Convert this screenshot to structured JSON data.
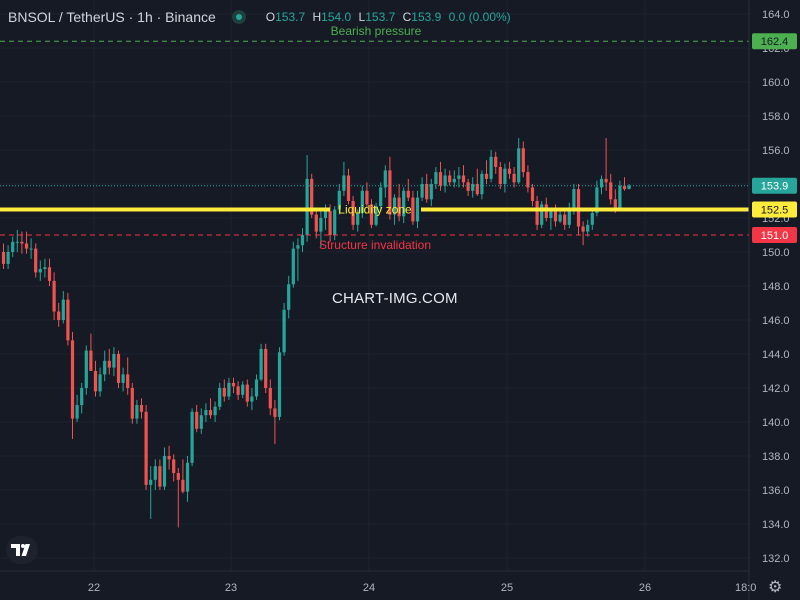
{
  "header": {
    "title": "BNSOL / TetherUS · 1h · Binance",
    "ohlc": [
      {
        "key": "O",
        "value": "153.7"
      },
      {
        "key": "H",
        "value": "154.0"
      },
      {
        "key": "L",
        "value": "153.7"
      },
      {
        "key": "C",
        "value": "153.9"
      },
      {
        "key": "",
        "value": "0.0 (0.00%)"
      }
    ]
  },
  "watermark": "CHART-IMG.COM",
  "colors": {
    "background": "#161a25",
    "up": "#26a69a",
    "down": "#ef5350",
    "bearish_line": "#4caf50",
    "liquidity_line": "#ffeb3b",
    "invalidation_line": "#f23645"
  },
  "icons": {
    "logo": "tradingview-logo-icon",
    "settings": "gear-icon"
  },
  "chart_data": {
    "type": "candlestick",
    "title": "BNSOL / TetherUS · 1h · Binance",
    "y_range": [
      131.5,
      164.5
    ],
    "y_ticks": [
      "132.0",
      "134.0",
      "136.0",
      "138.0",
      "140.0",
      "142.0",
      "144.0",
      "146.0",
      "148.0",
      "150.0",
      "152.0",
      "154.0",
      "156.0",
      "158.0",
      "160.0",
      "162.0",
      "164.0"
    ],
    "x_ticks": [
      "22",
      "23",
      "24",
      "25",
      "26",
      "18:0"
    ],
    "grid": true,
    "current_price": {
      "value": 153.9,
      "label": "153.9"
    },
    "levels": [
      {
        "name": "Bearish pressure",
        "value": 162.4,
        "label": "162.4",
        "style": "dashed",
        "color": "#4caf50"
      },
      {
        "name": "Liquidity zone",
        "value": 152.5,
        "label": "152.5",
        "style": "solid",
        "color": "#ffeb3b"
      },
      {
        "name": "Structure invalidation",
        "value": 151.0,
        "label": "151.0",
        "style": "dashed",
        "color": "#f23645"
      }
    ],
    "candles": [
      [
        150.0,
        150.5,
        149.0,
        149.3
      ],
      [
        149.3,
        150.4,
        149.0,
        150.0
      ],
      [
        150.0,
        150.9,
        149.7,
        150.6
      ],
      [
        150.6,
        151.3,
        150.0,
        150.6
      ],
      [
        150.6,
        151.2,
        149.9,
        150.5
      ],
      [
        150.5,
        151.2,
        149.9,
        150.2
      ],
      [
        150.2,
        150.8,
        149.6,
        150.2
      ],
      [
        150.2,
        150.5,
        148.5,
        148.8
      ],
      [
        148.8,
        149.5,
        148.3,
        149.0
      ],
      [
        149.0,
        149.6,
        148.5,
        149.1
      ],
      [
        149.1,
        149.6,
        148.0,
        148.3
      ],
      [
        148.3,
        148.8,
        146.0,
        146.5
      ],
      [
        146.5,
        147.0,
        145.6,
        146.0
      ],
      [
        146.0,
        147.7,
        145.8,
        147.2
      ],
      [
        147.2,
        147.6,
        144.5,
        144.8
      ],
      [
        144.8,
        145.3,
        139.0,
        140.2
      ],
      [
        140.2,
        141.6,
        140.0,
        141.0
      ],
      [
        141.0,
        142.3,
        140.5,
        142.0
      ],
      [
        142.0,
        144.5,
        141.6,
        144.2
      ],
      [
        144.2,
        145.2,
        143.0,
        143.0
      ],
      [
        143.0,
        143.6,
        141.5,
        141.8
      ],
      [
        141.8,
        143.2,
        141.5,
        142.8
      ],
      [
        142.8,
        144.2,
        142.4,
        143.6
      ],
      [
        143.6,
        144.3,
        142.8,
        143.2
      ],
      [
        143.2,
        144.4,
        142.7,
        144.0
      ],
      [
        144.0,
        144.2,
        142.0,
        142.3
      ],
      [
        142.3,
        143.2,
        141.8,
        142.8
      ],
      [
        142.8,
        143.8,
        141.6,
        142.0
      ],
      [
        142.0,
        142.3,
        139.9,
        140.2
      ],
      [
        140.2,
        141.3,
        139.9,
        141.0
      ],
      [
        141.0,
        141.4,
        140.2,
        140.6
      ],
      [
        140.6,
        141.0,
        136.0,
        136.3
      ],
      [
        136.3,
        137.4,
        134.3,
        136.6
      ],
      [
        136.6,
        137.8,
        136.0,
        137.4
      ],
      [
        137.4,
        137.8,
        136.0,
        136.2
      ],
      [
        136.2,
        138.5,
        136.0,
        138.0
      ],
      [
        138.0,
        138.6,
        137.2,
        137.8
      ],
      [
        137.8,
        138.1,
        136.5,
        137.0
      ],
      [
        137.0,
        137.3,
        133.8,
        136.6
      ],
      [
        136.6,
        137.8,
        135.8,
        135.9
      ],
      [
        135.9,
        138.0,
        135.3,
        137.6
      ],
      [
        137.6,
        140.8,
        137.4,
        140.6
      ],
      [
        140.6,
        141.0,
        139.4,
        139.6
      ],
      [
        139.6,
        140.8,
        139.3,
        140.4
      ],
      [
        140.4,
        141.1,
        140.0,
        140.7
      ],
      [
        140.7,
        141.4,
        140.2,
        140.4
      ],
      [
        140.4,
        141.2,
        140.0,
        140.9
      ],
      [
        140.9,
        142.3,
        140.7,
        142.0
      ],
      [
        142.0,
        142.5,
        141.2,
        141.5
      ],
      [
        141.5,
        142.6,
        141.3,
        142.3
      ],
      [
        142.3,
        142.6,
        141.7,
        142.1
      ],
      [
        142.1,
        142.4,
        141.3,
        141.6
      ],
      [
        141.6,
        142.4,
        141.4,
        142.2
      ],
      [
        142.2,
        142.5,
        140.9,
        141.2
      ],
      [
        141.2,
        142.0,
        140.7,
        141.5
      ],
      [
        141.5,
        142.8,
        141.3,
        142.5
      ],
      [
        142.5,
        144.6,
        142.4,
        144.3
      ],
      [
        144.3,
        144.6,
        141.7,
        142.0
      ],
      [
        142.0,
        142.5,
        140.4,
        140.8
      ],
      [
        140.8,
        141.3,
        138.7,
        140.3
      ],
      [
        140.3,
        144.4,
        140.1,
        144.1
      ],
      [
        144.1,
        147.0,
        143.9,
        146.6
      ],
      [
        146.6,
        148.6,
        146.1,
        148.1
      ],
      [
        148.1,
        150.6,
        147.9,
        150.2
      ],
      [
        150.2,
        150.8,
        148.3,
        150.4
      ],
      [
        150.4,
        151.4,
        150.0,
        151.0
      ],
      [
        151.0,
        155.7,
        150.6,
        154.3
      ],
      [
        154.3,
        154.6,
        152.0,
        152.2
      ],
      [
        152.2,
        152.6,
        150.8,
        151.2
      ],
      [
        151.2,
        152.5,
        150.3,
        152.0
      ],
      [
        152.0,
        152.8,
        151.3,
        152.4
      ],
      [
        152.4,
        152.8,
        150.6,
        151.0
      ],
      [
        151.0,
        152.7,
        150.7,
        152.5
      ],
      [
        152.5,
        154.0,
        152.2,
        153.6
      ],
      [
        153.6,
        155.3,
        153.3,
        154.5
      ],
      [
        154.5,
        154.9,
        152.8,
        153.0
      ],
      [
        153.0,
        153.3,
        151.3,
        151.6
      ],
      [
        151.6,
        152.5,
        151.2,
        152.3
      ],
      [
        152.3,
        153.9,
        152.0,
        153.6
      ],
      [
        153.6,
        154.1,
        152.6,
        152.8
      ],
      [
        152.8,
        153.1,
        151.4,
        151.6
      ],
      [
        151.6,
        152.9,
        151.5,
        152.7
      ],
      [
        152.7,
        154.1,
        152.4,
        153.8
      ],
      [
        153.8,
        155.1,
        153.2,
        154.8
      ],
      [
        154.8,
        155.6,
        151.9,
        152.2
      ],
      [
        152.2,
        153.4,
        151.6,
        153.2
      ],
      [
        153.2,
        154.0,
        151.8,
        152.1
      ],
      [
        152.1,
        153.8,
        151.7,
        153.6
      ],
      [
        153.6,
        154.3,
        153.0,
        153.2
      ],
      [
        153.2,
        153.6,
        151.6,
        151.8
      ],
      [
        151.8,
        153.6,
        151.4,
        153.2
      ],
      [
        153.2,
        154.4,
        153.0,
        154.0
      ],
      [
        154.0,
        154.6,
        152.9,
        153.1
      ],
      [
        153.1,
        154.3,
        152.7,
        154.0
      ],
      [
        154.0,
        155.0,
        153.7,
        154.7
      ],
      [
        154.7,
        155.3,
        153.6,
        153.9
      ],
      [
        153.9,
        154.9,
        153.5,
        154.5
      ],
      [
        154.5,
        154.8,
        153.9,
        154.1
      ],
      [
        154.1,
        154.8,
        153.8,
        154.3
      ],
      [
        154.3,
        155.0,
        153.8,
        154.5
      ],
      [
        154.5,
        155.1,
        153.8,
        154.1
      ],
      [
        154.1,
        154.3,
        153.3,
        153.6
      ],
      [
        153.6,
        154.4,
        153.2,
        154.0
      ],
      [
        154.0,
        154.9,
        153.3,
        153.4
      ],
      [
        153.4,
        154.8,
        153.1,
        154.6
      ],
      [
        154.6,
        155.4,
        154.0,
        154.3
      ],
      [
        154.3,
        156.0,
        154.1,
        155.6
      ],
      [
        155.6,
        155.9,
        154.6,
        155.0
      ],
      [
        155.0,
        155.3,
        153.7,
        154.0
      ],
      [
        154.0,
        155.2,
        153.5,
        154.9
      ],
      [
        154.9,
        155.3,
        154.3,
        154.6
      ],
      [
        154.6,
        155.0,
        153.8,
        154.1
      ],
      [
        154.1,
        156.7,
        154.0,
        156.1
      ],
      [
        156.1,
        156.5,
        154.4,
        154.7
      ],
      [
        154.7,
        155.1,
        153.5,
        153.8
      ],
      [
        153.8,
        154.0,
        152.7,
        153.0
      ],
      [
        153.0,
        153.3,
        151.3,
        151.6
      ],
      [
        151.6,
        153.0,
        151.4,
        152.8
      ],
      [
        152.8,
        153.2,
        151.8,
        152.0
      ],
      [
        152.0,
        152.6,
        151.3,
        152.4
      ],
      [
        152.4,
        152.8,
        151.5,
        151.8
      ],
      [
        151.8,
        152.4,
        151.7,
        152.2
      ],
      [
        152.2,
        152.5,
        151.3,
        151.6
      ],
      [
        151.6,
        152.9,
        151.4,
        152.5
      ],
      [
        152.5,
        154.0,
        152.2,
        153.7
      ],
      [
        153.7,
        154.0,
        151.0,
        151.5
      ],
      [
        151.5,
        151.8,
        150.4,
        151.2
      ],
      [
        151.2,
        151.9,
        150.9,
        151.6
      ],
      [
        151.6,
        152.5,
        151.3,
        152.3
      ],
      [
        152.3,
        154.2,
        152.1,
        153.8
      ],
      [
        153.8,
        154.5,
        153.4,
        154.3
      ],
      [
        154.3,
        156.7,
        153.6,
        154.1
      ],
      [
        154.1,
        154.6,
        152.8,
        153.1
      ],
      [
        153.1,
        153.7,
        152.3,
        152.6
      ],
      [
        152.6,
        154.2,
        152.4,
        153.9
      ],
      [
        153.9,
        154.4,
        153.6,
        153.7
      ],
      [
        153.7,
        154.0,
        153.7,
        153.9
      ]
    ]
  }
}
